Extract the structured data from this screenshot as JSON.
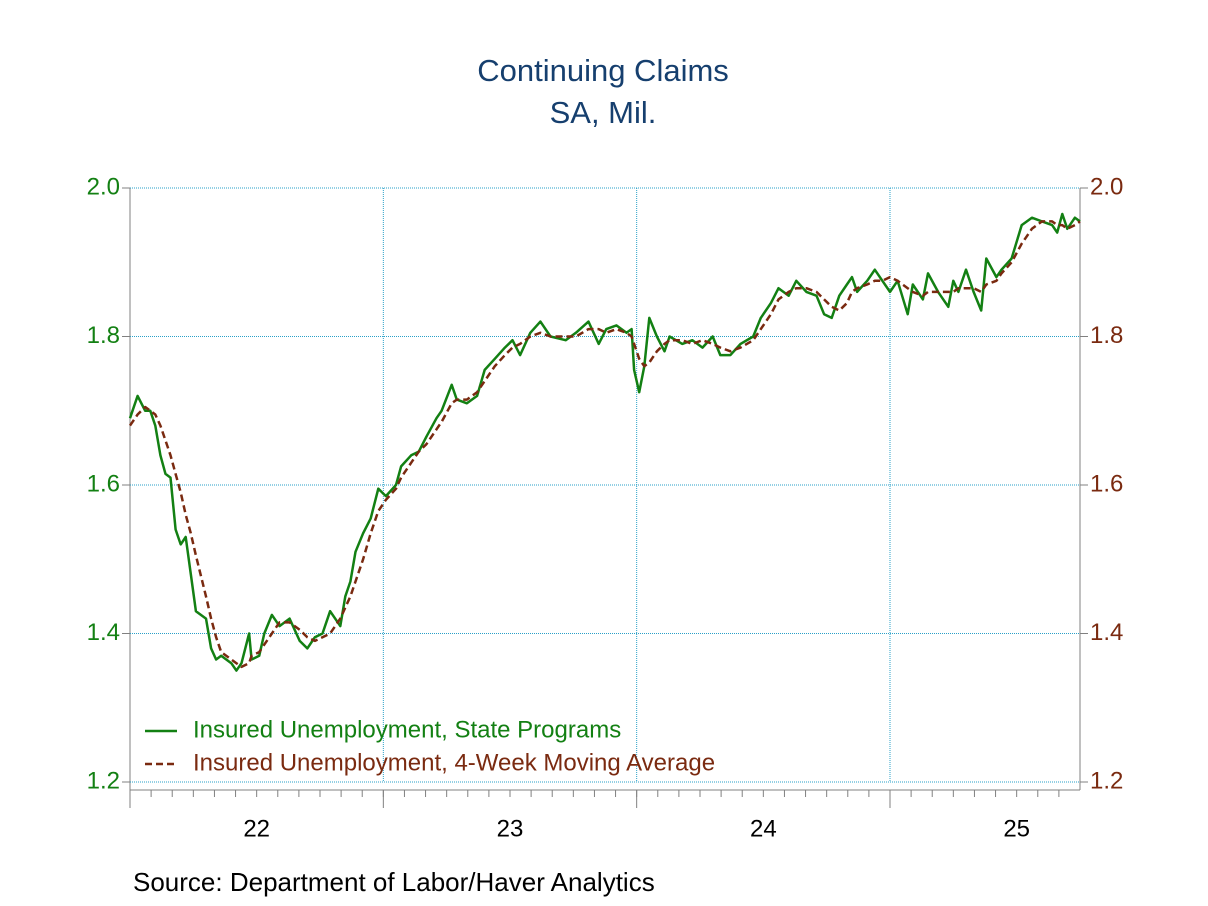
{
  "chart_data": {
    "type": "line",
    "title": "Continuing Claims",
    "subtitle": "SA, Mil.",
    "source": "Source:  Department of Labor/Haver Analytics",
    "x": [
      2022.0,
      2022.03,
      2022.06,
      2022.08,
      2022.1,
      2022.12,
      2022.14,
      2022.16,
      2022.18,
      2022.2,
      2022.22,
      2022.24,
      2022.26,
      2022.3,
      2022.32,
      2022.34,
      2022.36,
      2022.4,
      2022.42,
      2022.44,
      2022.47,
      2022.48,
      2022.51,
      2022.53,
      2022.56,
      2022.59,
      2022.63,
      2022.67,
      2022.7,
      2022.73,
      2022.76,
      2022.79,
      2022.83,
      2022.85,
      2022.87,
      2022.89,
      2022.92,
      2022.95,
      2022.98,
      2023.01,
      2023.05,
      2023.07,
      2023.11,
      2023.14,
      2023.17,
      2023.21,
      2023.23,
      2023.27,
      2023.29,
      2023.33,
      2023.37,
      2023.4,
      2023.44,
      2023.48,
      2023.51,
      2023.54,
      2023.58,
      2023.62,
      2023.66,
      2023.72,
      2023.76,
      2023.81,
      2023.85,
      2023.88,
      2023.92,
      2023.96,
      2023.98,
      2023.99,
      2024.01,
      2024.03,
      2024.05,
      2024.08,
      2024.11,
      2024.13,
      2024.18,
      2024.22,
      2024.26,
      2024.3,
      2024.33,
      2024.37,
      2024.41,
      2024.46,
      2024.49,
      2024.53,
      2024.56,
      2024.6,
      2024.63,
      2024.67,
      2024.71,
      2024.74,
      2024.77,
      2024.8,
      2024.83,
      2024.85,
      2024.87,
      2024.91,
      2024.94,
      2024.97,
      2025.0,
      2025.03,
      2025.07,
      2025.09,
      2025.13,
      2025.15,
      2025.19,
      2025.23,
      2025.25,
      2025.27,
      2025.3,
      2025.33,
      2025.36,
      2025.38,
      2025.42,
      2025.44,
      2025.48,
      2025.52,
      2025.56,
      2025.6,
      2025.64,
      2025.66,
      2025.68,
      2025.7,
      2025.73,
      2025.75
    ],
    "series": [
      {
        "name": "Insured Unemployment, State Programs",
        "color": "#138013",
        "dash": false,
        "values": [
          1.69,
          1.72,
          1.7,
          1.7,
          1.68,
          1.64,
          1.615,
          1.61,
          1.54,
          1.52,
          1.53,
          1.48,
          1.43,
          1.42,
          1.38,
          1.365,
          1.37,
          1.36,
          1.35,
          1.36,
          1.4,
          1.365,
          1.37,
          1.4,
          1.425,
          1.41,
          1.42,
          1.39,
          1.38,
          1.395,
          1.4,
          1.43,
          1.41,
          1.45,
          1.47,
          1.51,
          1.535,
          1.555,
          1.595,
          1.585,
          1.6,
          1.625,
          1.64,
          1.645,
          1.665,
          1.69,
          1.7,
          1.735,
          1.715,
          1.71,
          1.72,
          1.755,
          1.77,
          1.785,
          1.795,
          1.775,
          1.805,
          1.82,
          1.8,
          1.795,
          1.805,
          1.82,
          1.79,
          1.81,
          1.815,
          1.805,
          1.81,
          1.755,
          1.725,
          1.76,
          1.825,
          1.8,
          1.78,
          1.8,
          1.79,
          1.795,
          1.785,
          1.8,
          1.775,
          1.775,
          1.79,
          1.8,
          1.825,
          1.845,
          1.865,
          1.855,
          1.875,
          1.86,
          1.855,
          1.83,
          1.825,
          1.855,
          1.87,
          1.88,
          1.86,
          1.875,
          1.89,
          1.875,
          1.86,
          1.875,
          1.83,
          1.87,
          1.85,
          1.885,
          1.86,
          1.84,
          1.875,
          1.86,
          1.89,
          1.86,
          1.835,
          1.905,
          1.88,
          1.89,
          1.905,
          1.95,
          1.96,
          1.955,
          1.95,
          1.94,
          1.965,
          1.945,
          1.96,
          1.955
        ]
      },
      {
        "name": "Insured Unemployment, 4-Week Moving Average",
        "color": "#7a2a10",
        "dash": true,
        "axis": "y2",
        "values": [
          1.68,
          1.695,
          1.705,
          1.7,
          1.695,
          1.68,
          1.66,
          1.64,
          1.615,
          1.59,
          1.56,
          1.535,
          1.505,
          1.45,
          1.42,
          1.395,
          1.375,
          1.365,
          1.36,
          1.355,
          1.36,
          1.37,
          1.375,
          1.385,
          1.4,
          1.415,
          1.415,
          1.405,
          1.395,
          1.39,
          1.395,
          1.4,
          1.42,
          1.435,
          1.45,
          1.47,
          1.5,
          1.535,
          1.565,
          1.58,
          1.595,
          1.61,
          1.63,
          1.645,
          1.655,
          1.675,
          1.685,
          1.71,
          1.715,
          1.715,
          1.725,
          1.74,
          1.76,
          1.775,
          1.785,
          1.79,
          1.8,
          1.805,
          1.8,
          1.8,
          1.8,
          1.81,
          1.81,
          1.805,
          1.81,
          1.805,
          1.8,
          1.79,
          1.77,
          1.76,
          1.765,
          1.78,
          1.79,
          1.795,
          1.795,
          1.79,
          1.795,
          1.79,
          1.785,
          1.78,
          1.785,
          1.795,
          1.81,
          1.83,
          1.85,
          1.86,
          1.865,
          1.865,
          1.86,
          1.85,
          1.84,
          1.835,
          1.845,
          1.86,
          1.865,
          1.87,
          1.875,
          1.875,
          1.88,
          1.875,
          1.865,
          1.86,
          1.855,
          1.86,
          1.86,
          1.86,
          1.86,
          1.865,
          1.865,
          1.865,
          1.86,
          1.87,
          1.875,
          1.885,
          1.9,
          1.925,
          1.945,
          1.955,
          1.955,
          1.95,
          1.95,
          1.945,
          1.95,
          1.955
        ]
      }
    ],
    "xlim": [
      2022,
      2025.75
    ],
    "xticks": [
      {
        "value": 2022,
        "label": "22"
      },
      {
        "value": 2023,
        "label": "23"
      },
      {
        "value": 2024,
        "label": "24"
      },
      {
        "value": 2025,
        "label": "25"
      }
    ],
    "ylim": [
      1.2,
      2.0
    ],
    "yticks": [
      {
        "value": 1.2,
        "label": "1.2"
      },
      {
        "value": 1.4,
        "label": "1.4"
      },
      {
        "value": 1.6,
        "label": "1.6"
      },
      {
        "value": 1.8,
        "label": "1.8"
      },
      {
        "value": 2.0,
        "label": "2.0"
      }
    ],
    "y2lim": [
      1.2,
      2.0
    ],
    "y2ticks": [
      {
        "value": 1.2,
        "label": "1.2"
      },
      {
        "value": 1.4,
        "label": "1.4"
      },
      {
        "value": 1.6,
        "label": "1.6"
      },
      {
        "value": 1.8,
        "label": "1.8"
      },
      {
        "value": 2.0,
        "label": "2.0"
      }
    ],
    "grid": true,
    "legend": "lower left"
  }
}
